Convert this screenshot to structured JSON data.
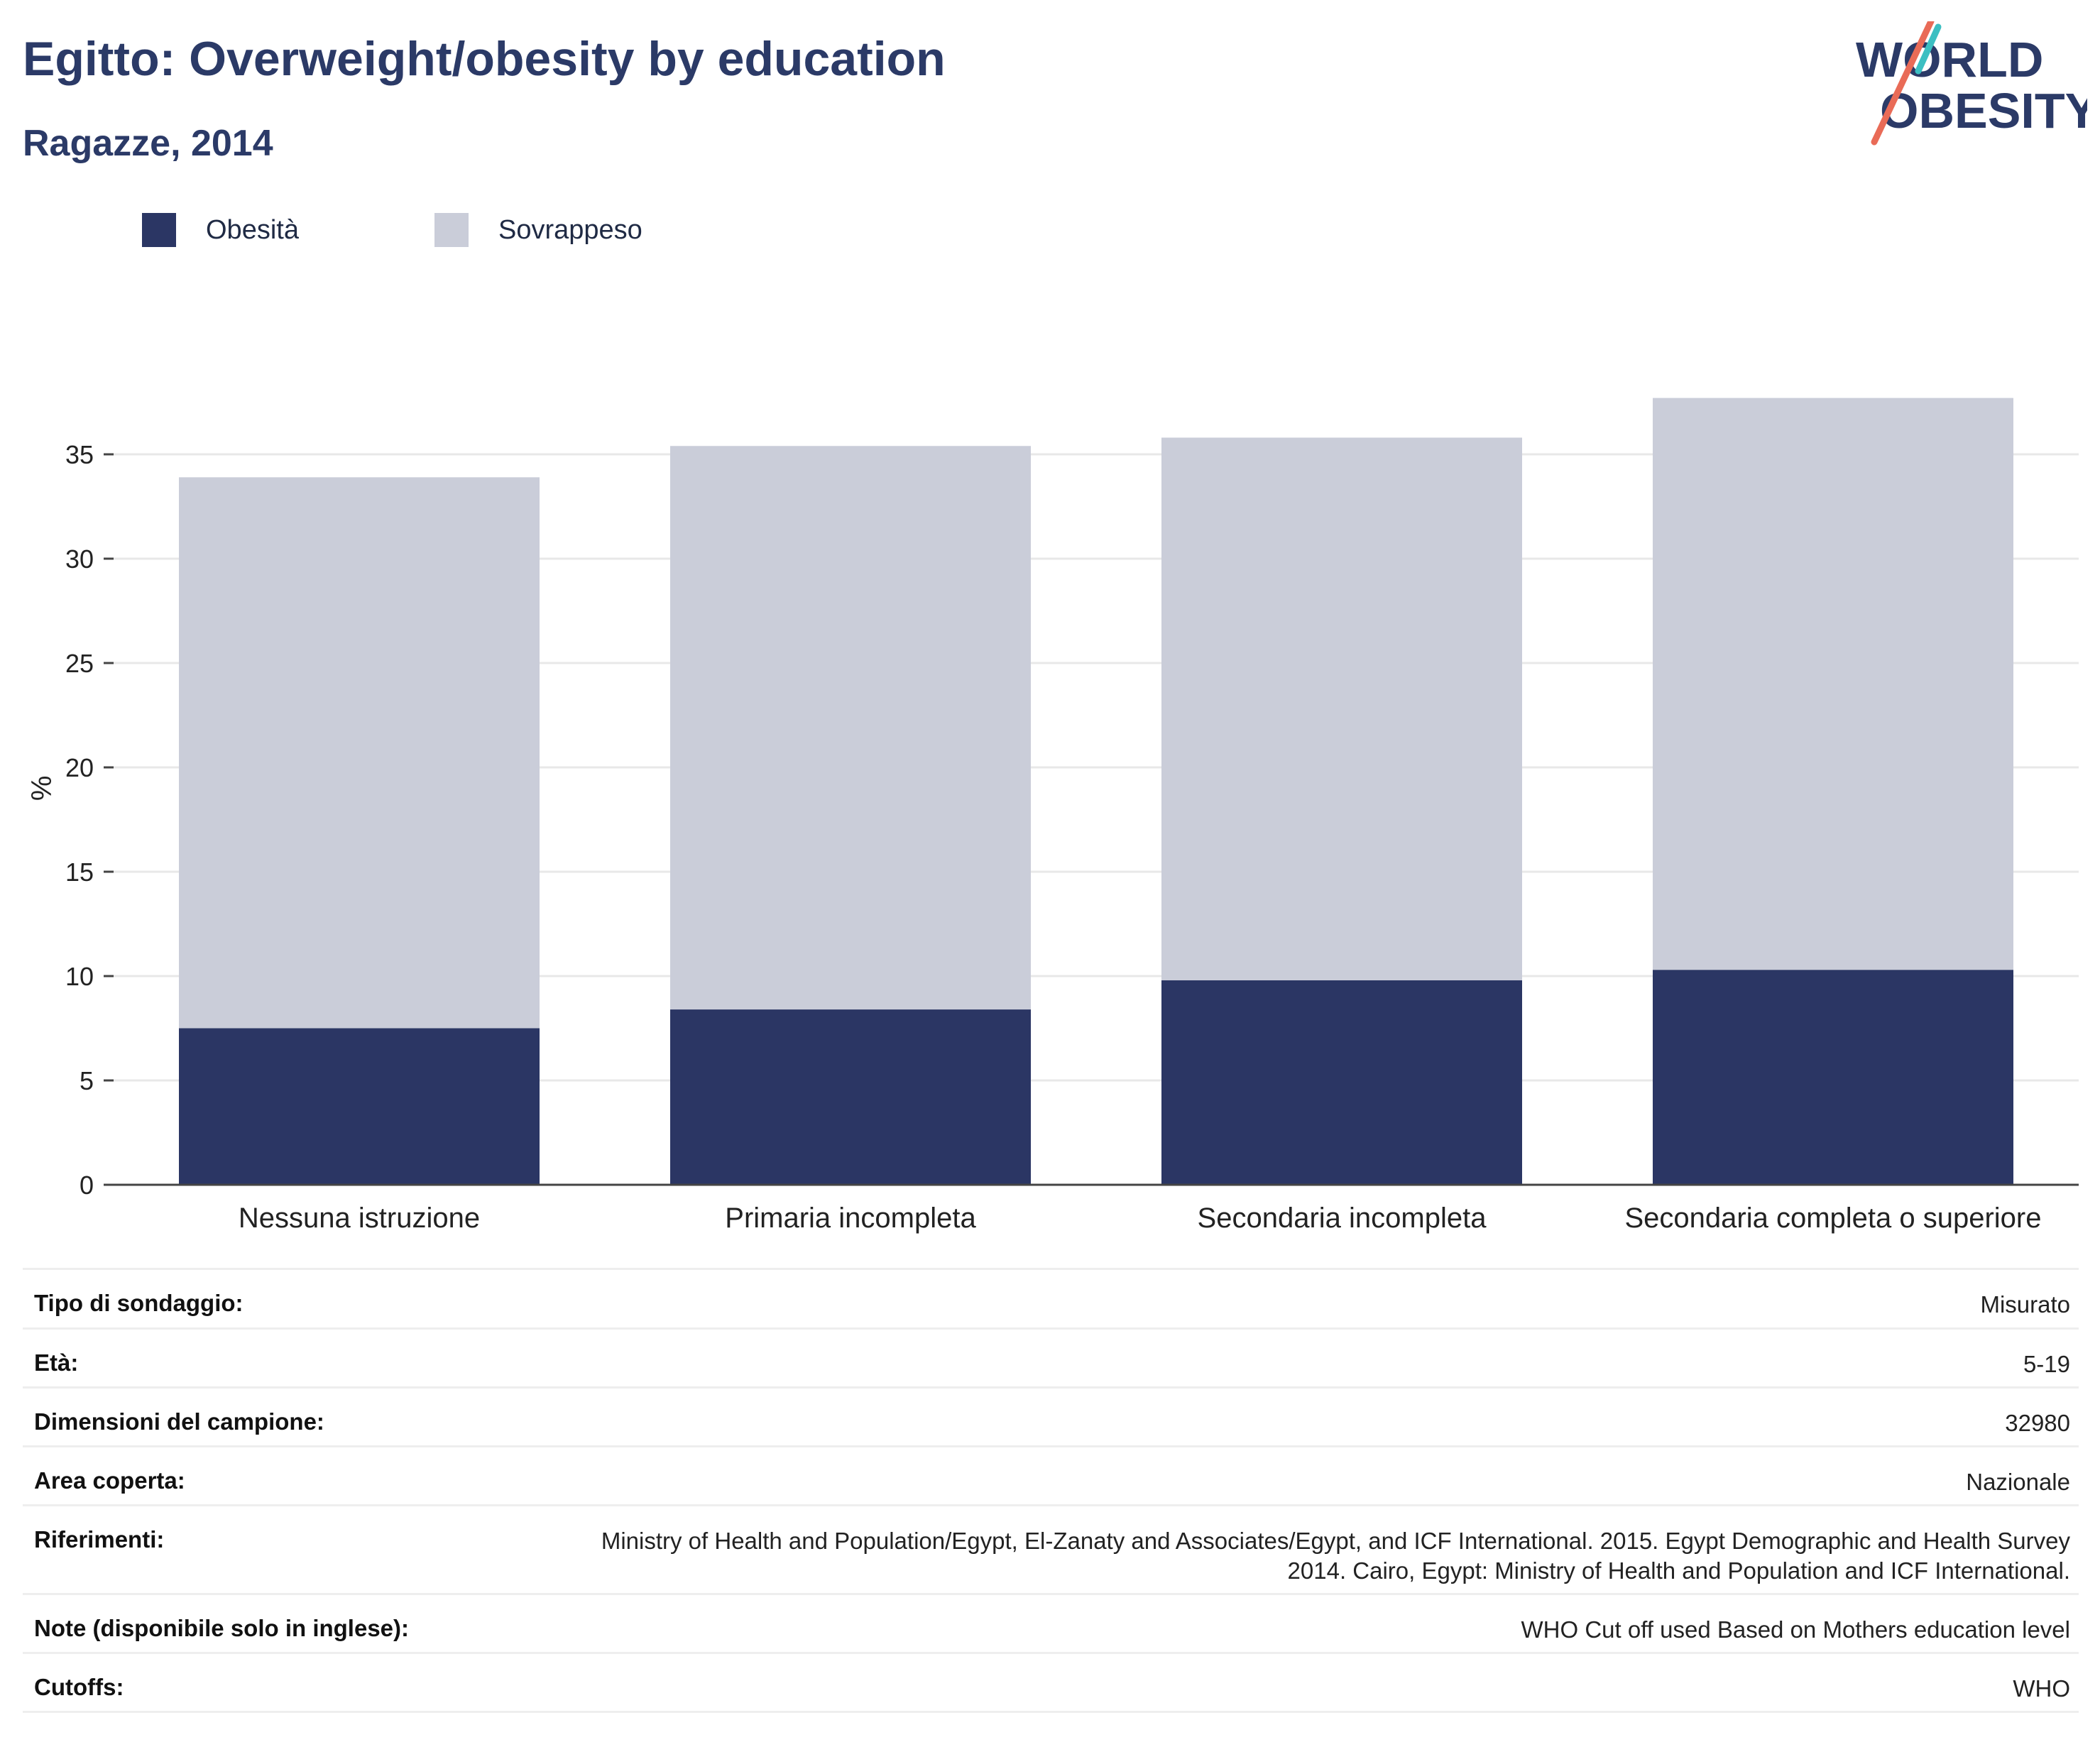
{
  "header": {
    "title": "Egitto: Overweight/obesity by education",
    "subtitle": "Ragazze, 2014"
  },
  "logo": {
    "line1": "WORLD",
    "line2": "OBESITY"
  },
  "legend": [
    {
      "label": "Obesità",
      "color": "#2b3664"
    },
    {
      "label": "Sovrappeso",
      "color": "#cacdd9"
    }
  ],
  "chart_data": {
    "type": "bar",
    "stacked": true,
    "categories": [
      "Nessuna istruzione",
      "Primaria incompleta",
      "Secondaria incompleta",
      "Secondaria completa o superiore"
    ],
    "series": [
      {
        "name": "Obesità",
        "values": [
          7.5,
          8.4,
          9.8,
          10.3
        ],
        "color": "#2b3664"
      },
      {
        "name": "Sovrappeso",
        "values": [
          26.4,
          27.0,
          26.0,
          27.4
        ],
        "color": "#cacdd9"
      }
    ],
    "totals": [
      33.9,
      35.4,
      35.8,
      37.7
    ],
    "ylabel": "%",
    "ylim": [
      0,
      38
    ],
    "yticks": [
      0,
      5,
      10,
      15,
      20,
      25,
      30,
      35
    ],
    "grid": true
  },
  "info": [
    {
      "label": "Tipo di sondaggio:",
      "value": "Misurato"
    },
    {
      "label": "Età:",
      "value": "5-19"
    },
    {
      "label": "Dimensioni del campione:",
      "value": "32980"
    },
    {
      "label": "Area coperta:",
      "value": "Nazionale"
    },
    {
      "label": "Riferimenti:",
      "value": "Ministry of Health and Population/Egypt, El-Zanaty and Associates/Egypt, and ICF International. 2015. Egypt Demographic and Health Survey 2014. Cairo, Egypt: Ministry of Health and Population and ICF International."
    },
    {
      "label": "Note (disponibile solo in inglese):",
      "value": "WHO Cut off used Based on Mothers education level"
    },
    {
      "label": "Cutoffs:",
      "value": "WHO"
    }
  ]
}
